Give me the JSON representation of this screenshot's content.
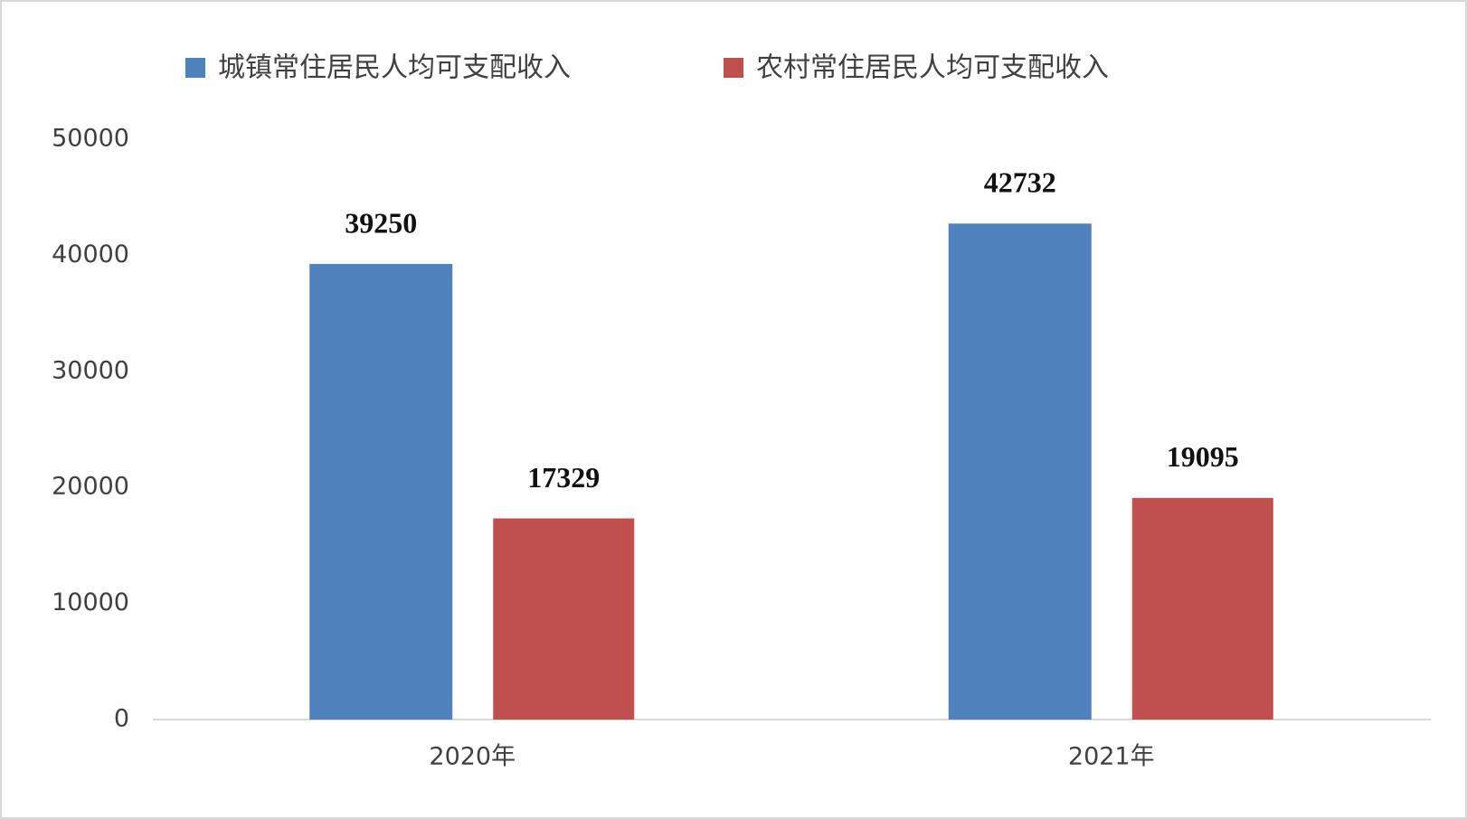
{
  "chart_data": {
    "type": "bar",
    "categories": [
      "2020年",
      "2021年"
    ],
    "series": [
      {
        "name": "城镇常住居民人均可支配收入",
        "color": "#4f81bd",
        "values": [
          39250,
          42732
        ]
      },
      {
        "name": "农村常住居民人均可支配收入",
        "color": "#c0504d",
        "values": [
          17329,
          19095
        ]
      }
    ],
    "ylim": [
      0,
      50000
    ],
    "yticks": [
      0,
      10000,
      20000,
      30000,
      40000,
      50000
    ],
    "grid": false,
    "legend": "top"
  }
}
